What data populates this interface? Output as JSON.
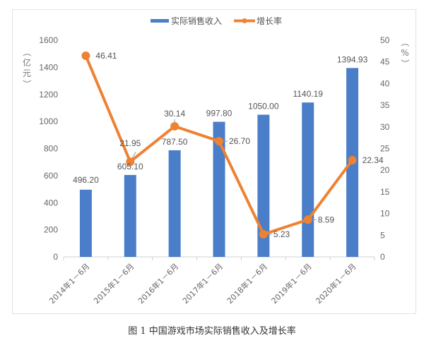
{
  "chart_data": {
    "type": "bar+line",
    "title": "",
    "caption": "图 1 中国游戏市场实际销售收入及增长率",
    "categories": [
      "2014年1－6月",
      "2015年1－6月",
      "2016年1－6月",
      "2017年1－6月",
      "2018年1－6月",
      "2019年1－6月",
      "2020年1－6月"
    ],
    "series": [
      {
        "name": "实际销售收入",
        "type": "bar",
        "axis": "left",
        "color": "#4a7ec8",
        "values": [
          496.2,
          605.1,
          787.5,
          997.8,
          1050.0,
          1140.19,
          1394.93
        ],
        "labels": [
          "496.20",
          "605.10",
          "787.50",
          "997.80",
          "1050.00",
          "1140.19",
          "1394.93"
        ]
      },
      {
        "name": "增长率",
        "type": "line",
        "axis": "right",
        "color": "#ee8233",
        "values": [
          46.41,
          21.95,
          30.14,
          26.7,
          5.23,
          8.59,
          22.34
        ],
        "labels": [
          "46.41",
          "21.95",
          "30.14",
          "26.70",
          "5.23",
          "8.59",
          "22.34"
        ]
      }
    ],
    "ylabel": "（亿元）",
    "y2label": "（%）",
    "ylim": [
      0,
      1600
    ],
    "y2lim": [
      0,
      50
    ],
    "yticks": [
      "0",
      "200",
      "400",
      "600",
      "800",
      "1000",
      "1200",
      "1400",
      "1600"
    ],
    "y2ticks": [
      "0",
      "5",
      "10",
      "15",
      "20",
      "25",
      "30",
      "35",
      "40",
      "45",
      "50"
    ],
    "grid": false,
    "legend_position": "top"
  },
  "legend": [
    {
      "label": "实际销售收入",
      "color": "#4a7ec8"
    },
    {
      "label": "增长率",
      "color": "#ee8233"
    }
  ],
  "caption": "图 1 中国游戏市场实际销售收入及增长率"
}
